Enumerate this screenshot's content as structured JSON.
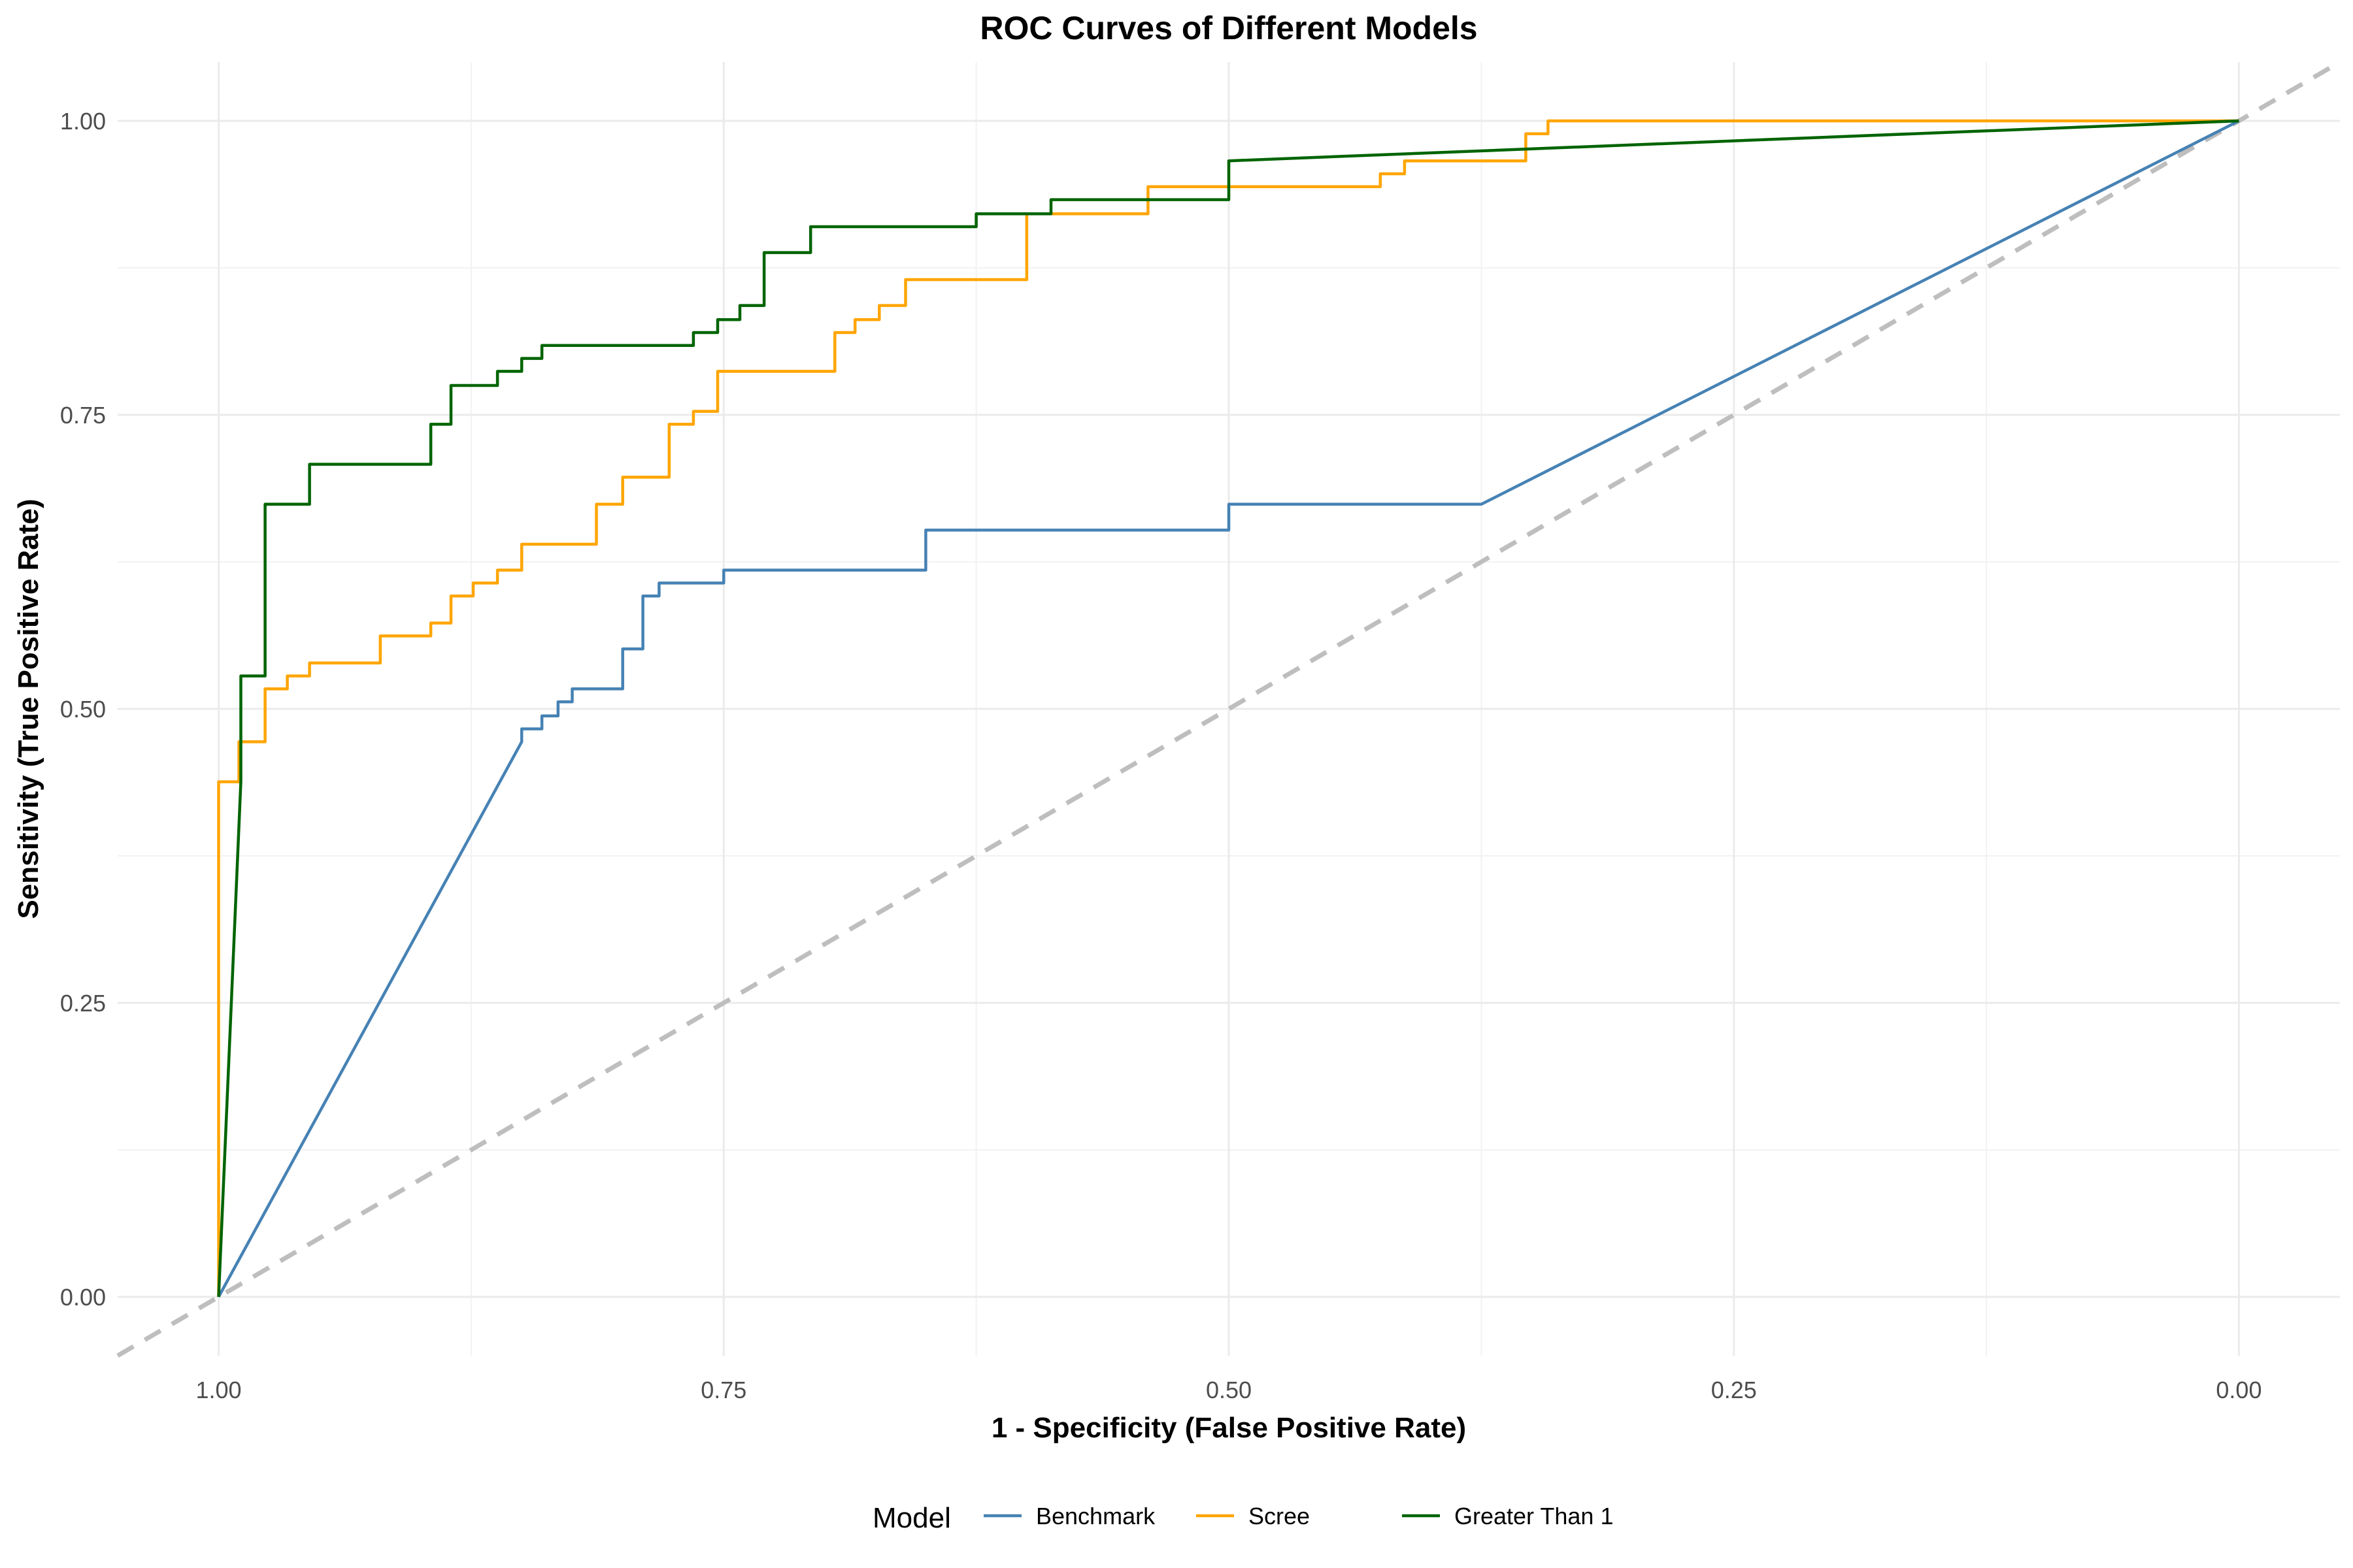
{
  "chart_data": {
    "type": "line",
    "title": "ROC Curves of Different Models",
    "xlabel": "1 - Specificity (False Positive Rate)",
    "ylabel": "Sensitivity (True Positive Rate)",
    "x_reversed": true,
    "xlim": [
      1.05,
      -0.05
    ],
    "ylim": [
      -0.05,
      1.05
    ],
    "x_ticks": [
      "1.00",
      "0.75",
      "0.50",
      "0.25",
      "0.00"
    ],
    "x_tick_values": [
      1.0,
      0.75,
      0.5,
      0.25,
      0.0
    ],
    "y_ticks": [
      "0.00",
      "0.25",
      "0.50",
      "0.75",
      "1.00"
    ],
    "y_tick_values": [
      0.0,
      0.25,
      0.5,
      0.75,
      1.0
    ],
    "grid": true,
    "legend_title": "Model",
    "legend_position": "bottom",
    "reference_line": {
      "style": "dashed",
      "color": "#bebebe",
      "from": [
        1.05,
        -0.05
      ],
      "to": [
        -0.05,
        1.05
      ]
    },
    "series": [
      {
        "name": "Benchmark",
        "color": "#4682b4",
        "points": [
          [
            1.0,
            0.0
          ],
          [
            0.85,
            0.472
          ],
          [
            0.85,
            0.483
          ],
          [
            0.84,
            0.483
          ],
          [
            0.84,
            0.494
          ],
          [
            0.832,
            0.494
          ],
          [
            0.832,
            0.506
          ],
          [
            0.825,
            0.506
          ],
          [
            0.825,
            0.517
          ],
          [
            0.8,
            0.517
          ],
          [
            0.8,
            0.551
          ],
          [
            0.79,
            0.551
          ],
          [
            0.79,
            0.596
          ],
          [
            0.782,
            0.596
          ],
          [
            0.782,
            0.607
          ],
          [
            0.75,
            0.607
          ],
          [
            0.75,
            0.618
          ],
          [
            0.65,
            0.618
          ],
          [
            0.65,
            0.652
          ],
          [
            0.5,
            0.652
          ],
          [
            0.5,
            0.674
          ],
          [
            0.375,
            0.674
          ],
          [
            0.0,
            1.0
          ]
        ]
      },
      {
        "name": "Scree",
        "color": "#ffa500",
        "points": [
          [
            1.0,
            0.0
          ],
          [
            1.0,
            0.438
          ],
          [
            0.99,
            0.438
          ],
          [
            0.99,
            0.472
          ],
          [
            0.977,
            0.472
          ],
          [
            0.977,
            0.517
          ],
          [
            0.966,
            0.517
          ],
          [
            0.966,
            0.528
          ],
          [
            0.955,
            0.528
          ],
          [
            0.955,
            0.539
          ],
          [
            0.92,
            0.539
          ],
          [
            0.92,
            0.562
          ],
          [
            0.895,
            0.562
          ],
          [
            0.895,
            0.573
          ],
          [
            0.885,
            0.573
          ],
          [
            0.885,
            0.596
          ],
          [
            0.874,
            0.596
          ],
          [
            0.874,
            0.607
          ],
          [
            0.862,
            0.607
          ],
          [
            0.862,
            0.618
          ],
          [
            0.85,
            0.618
          ],
          [
            0.85,
            0.64
          ],
          [
            0.813,
            0.64
          ],
          [
            0.813,
            0.674
          ],
          [
            0.8,
            0.674
          ],
          [
            0.8,
            0.697
          ],
          [
            0.777,
            0.697
          ],
          [
            0.777,
            0.742
          ],
          [
            0.765,
            0.742
          ],
          [
            0.765,
            0.753
          ],
          [
            0.753,
            0.753
          ],
          [
            0.753,
            0.787
          ],
          [
            0.695,
            0.787
          ],
          [
            0.695,
            0.82
          ],
          [
            0.685,
            0.82
          ],
          [
            0.685,
            0.831
          ],
          [
            0.673,
            0.831
          ],
          [
            0.673,
            0.843
          ],
          [
            0.66,
            0.843
          ],
          [
            0.66,
            0.865
          ],
          [
            0.6,
            0.865
          ],
          [
            0.6,
            0.921
          ],
          [
            0.54,
            0.921
          ],
          [
            0.54,
            0.944
          ],
          [
            0.425,
            0.944
          ],
          [
            0.425,
            0.955
          ],
          [
            0.413,
            0.955
          ],
          [
            0.413,
            0.966
          ],
          [
            0.353,
            0.966
          ],
          [
            0.353,
            0.989
          ],
          [
            0.342,
            0.989
          ],
          [
            0.342,
            1.0
          ],
          [
            0.0,
            1.0
          ]
        ]
      },
      {
        "name": "Greater Than 1",
        "color": "#006400",
        "points": [
          [
            1.0,
            0.0
          ],
          [
            0.989,
            0.438
          ],
          [
            0.989,
            0.528
          ],
          [
            0.977,
            0.528
          ],
          [
            0.977,
            0.674
          ],
          [
            0.955,
            0.674
          ],
          [
            0.955,
            0.708
          ],
          [
            0.895,
            0.708
          ],
          [
            0.895,
            0.742
          ],
          [
            0.885,
            0.742
          ],
          [
            0.885,
            0.775
          ],
          [
            0.862,
            0.775
          ],
          [
            0.862,
            0.787
          ],
          [
            0.85,
            0.787
          ],
          [
            0.85,
            0.798
          ],
          [
            0.84,
            0.798
          ],
          [
            0.84,
            0.809
          ],
          [
            0.765,
            0.809
          ],
          [
            0.765,
            0.82
          ],
          [
            0.753,
            0.82
          ],
          [
            0.753,
            0.831
          ],
          [
            0.742,
            0.831
          ],
          [
            0.742,
            0.843
          ],
          [
            0.73,
            0.843
          ],
          [
            0.73,
            0.888
          ],
          [
            0.707,
            0.888
          ],
          [
            0.707,
            0.91
          ],
          [
            0.625,
            0.91
          ],
          [
            0.625,
            0.921
          ],
          [
            0.588,
            0.921
          ],
          [
            0.588,
            0.933
          ],
          [
            0.5,
            0.933
          ],
          [
            0.5,
            0.966
          ],
          [
            0.0,
            1.0
          ]
        ]
      }
    ]
  }
}
